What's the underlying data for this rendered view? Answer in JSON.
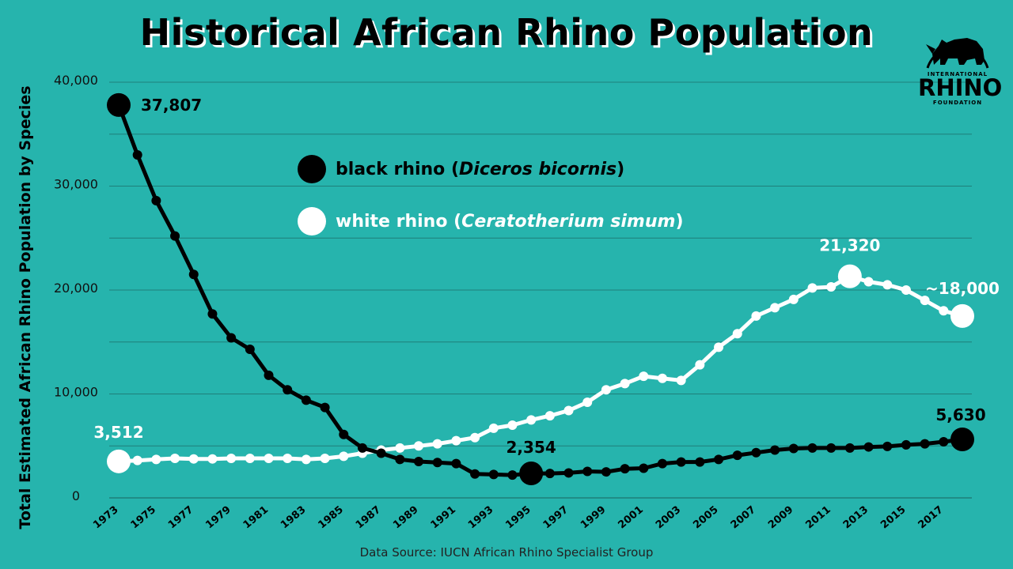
{
  "title": "Historical African Rhino Population",
  "source": "Data Source: IUCN African Rhino Specialist Group",
  "logo": {
    "line1": "INTERNATIONAL",
    "line2": "RHINO",
    "line3": "FOUNDATION"
  },
  "legend": [
    {
      "label": "black rhino (",
      "species": "Diceros bicornis",
      "close": ")",
      "color": "#000000"
    },
    {
      "label": "white rhino (",
      "species": "Ceratotherium simum",
      "close": ")",
      "color": "#ffffff"
    }
  ],
  "colors": {
    "background": "#26b4ad",
    "grid": "#1e7f7a",
    "black_rhino": "#000000",
    "white_rhino": "#ffffff"
  },
  "chart_data": {
    "type": "line",
    "title": "Historical African Rhino Population",
    "xlabel": "",
    "ylabel": "Total Estimated African Rhino Population by Species",
    "ylim": [
      0,
      40000
    ],
    "yticks": [
      0,
      10000,
      20000,
      30000,
      40000
    ],
    "ytick_labels": [
      "0",
      "10,000",
      "20,000",
      "30,000",
      "40,000"
    ],
    "xtick_labels": [
      "1973",
      "1975",
      "1977",
      "1979",
      "1981",
      "1983",
      "1985",
      "1987",
      "1989",
      "1991",
      "1993",
      "1995",
      "1997",
      "1999",
      "2001",
      "2003",
      "2005",
      "2007",
      "2009",
      "2011",
      "2013",
      "2015",
      "2017"
    ],
    "grid": true,
    "x": [
      1973,
      1974,
      1975,
      1976,
      1977,
      1978,
      1979,
      1980,
      1981,
      1982,
      1983,
      1984,
      1985,
      1986,
      1987,
      1988,
      1989,
      1990,
      1991,
      1992,
      1993,
      1994,
      1995,
      1996,
      1997,
      1998,
      1999,
      2000,
      2001,
      2002,
      2003,
      2004,
      2005,
      2006,
      2007,
      2008,
      2009,
      2010,
      2011,
      2012,
      2013,
      2014,
      2015,
      2016,
      2017,
      2018
    ],
    "series": [
      {
        "name": "black rhino (Diceros bicornis)",
        "color": "#000000",
        "values": [
          37807,
          33000,
          28600,
          25200,
          21500,
          17700,
          15400,
          14300,
          11800,
          10400,
          9400,
          8700,
          6100,
          4800,
          4300,
          3700,
          3500,
          3400,
          3300,
          2300,
          2250,
          2200,
          2354,
          2350,
          2400,
          2550,
          2500,
          2800,
          2850,
          3300,
          3450,
          3450,
          3700,
          4100,
          4350,
          4600,
          4750,
          4800,
          4800,
          4800,
          4900,
          4950,
          5100,
          5200,
          5400,
          5630
        ]
      },
      {
        "name": "white rhino (Ceratotherium simum)",
        "color": "#ffffff",
        "values": [
          3512,
          3600,
          3700,
          3800,
          3750,
          3750,
          3800,
          3800,
          3800,
          3800,
          3700,
          3800,
          4000,
          4300,
          4600,
          4800,
          5000,
          5200,
          5500,
          5800,
          6700,
          7000,
          7500,
          7900,
          8400,
          9200,
          10400,
          11000,
          11700,
          11500,
          11300,
          12800,
          14500,
          15800,
          17500,
          18300,
          19100,
          20200,
          20300,
          21320,
          20800,
          20500,
          20000,
          19000,
          18000,
          17500
        ]
      }
    ],
    "annotations": [
      {
        "label": "37,807",
        "series": 0,
        "x": 1973
      },
      {
        "label": "3,512",
        "series": 1,
        "x": 1973
      },
      {
        "label": "2,354",
        "series": 0,
        "x": 1995
      },
      {
        "label": "21,320",
        "series": 1,
        "x": 2012
      },
      {
        "label": "~18,000",
        "series": 1,
        "x": 2018
      },
      {
        "label": "5,630",
        "series": 0,
        "x": 2018
      }
    ]
  }
}
